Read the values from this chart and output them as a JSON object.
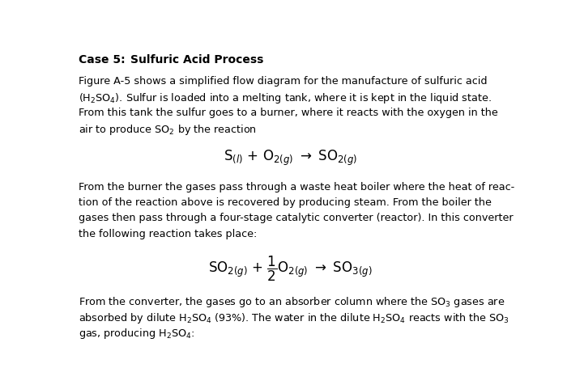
{
  "background_color": "#ffffff",
  "text_color": "#000000",
  "fig_width": 7.0,
  "fig_height": 4.56,
  "dpi": 100,
  "title_part1": "Case 5:",
  "title_part2": "Sulfuric Acid Process",
  "para1_lines": [
    "Figure A-5 shows a simplified flow diagram for the manufacture of sulfuric acid",
    "(H$_2$SO$_4$). Sulfur is loaded into a melting tank, where it is kept in the liquid state.",
    "From this tank the sulfur goes to a burner, where it reacts with the oxygen in the",
    "air to produce SO$_2$ by the reaction"
  ],
  "eq1": "S$_{(l)}$ + O$_{2(g)}$ $\\rightarrow$ SO$_{2(g)}$",
  "para2_lines": [
    "From the burner the gases pass through a waste heat boiler where the heat of reac-",
    "tion of the reaction above is recovered by producing steam. From the boiler the",
    "gases then pass through a four-stage catalytic converter (reactor). In this converter",
    "the following reaction takes place:"
  ],
  "eq2": "SO$_{2(g)}$ + $\\dfrac{1}{2}$O$_{2(g)}$ $\\rightarrow$ SO$_{3(g)}$",
  "para3_lines": [
    "From the converter, the gases go to an absorber column where the SO$_3$ gases are",
    "absorbed by dilute H$_2$SO$_4$ (93%). The water in the dilute H$_2$SO$_4$ reacts with the SO$_3$",
    "gas, producing H$_2$SO$_4$:"
  ]
}
